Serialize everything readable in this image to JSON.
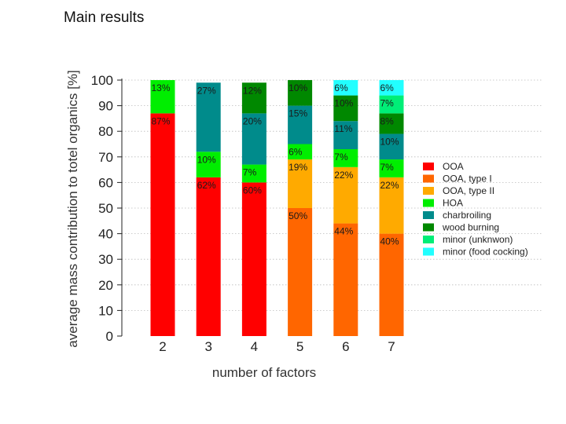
{
  "page": {
    "title": "Main results"
  },
  "chart_data": {
    "type": "bar",
    "stacked": true,
    "xlabel": "number of factors",
    "ylabel": "average mass contribution to totel organics [%]",
    "ylim": [
      0,
      100
    ],
    "yticks": [
      0,
      10,
      20,
      30,
      40,
      50,
      60,
      70,
      80,
      90,
      100
    ],
    "categories": [
      "2",
      "3",
      "4",
      "5",
      "6",
      "7"
    ],
    "grid": true,
    "legend_position": "right",
    "series": [
      {
        "name": "OOA",
        "color": "#ff0000",
        "values": [
          87,
          62,
          60,
          0,
          0,
          0
        ],
        "labels": [
          "87%",
          "62%",
          "60%",
          "",
          "",
          ""
        ]
      },
      {
        "name": "OOA, type I",
        "color": "#ff6600",
        "values": [
          0,
          0,
          0,
          50,
          44,
          40
        ],
        "labels": [
          "",
          "",
          "",
          "50%",
          "44%",
          "40%"
        ]
      },
      {
        "name": "OOA, type II",
        "color": "#ffaa00",
        "values": [
          0,
          0,
          0,
          19,
          22,
          22
        ],
        "labels": [
          "",
          "",
          "",
          "19%",
          "22%",
          "22%"
        ]
      },
      {
        "name": "HOA",
        "color": "#00ee00",
        "values": [
          13,
          10,
          7,
          6,
          7,
          7
        ],
        "labels": [
          "13%",
          "10%",
          "7%",
          "6%",
          "7%",
          "7%"
        ]
      },
      {
        "name": "charbroiling",
        "color": "#008b8b",
        "values": [
          0,
          27,
          20,
          15,
          11,
          10
        ],
        "labels": [
          "",
          "27%",
          "20%",
          "15%",
          "11%",
          "10%"
        ]
      },
      {
        "name": "wood burning",
        "color": "#008800",
        "values": [
          0,
          0,
          12,
          10,
          10,
          8
        ],
        "labels": [
          "",
          "",
          "12%",
          "10%",
          "10%",
          "8%"
        ]
      },
      {
        "name": "minor (unknwon)",
        "color": "#00ee77",
        "values": [
          0,
          0,
          0,
          0,
          0,
          7
        ],
        "labels": [
          "",
          "",
          "",
          "",
          "",
          "7%"
        ]
      },
      {
        "name": "minor (food cocking)",
        "color": "#22ffff",
        "values": [
          0,
          0,
          0,
          0,
          6,
          6
        ],
        "labels": [
          "",
          "",
          "",
          "",
          "6%",
          "6%"
        ]
      }
    ]
  }
}
